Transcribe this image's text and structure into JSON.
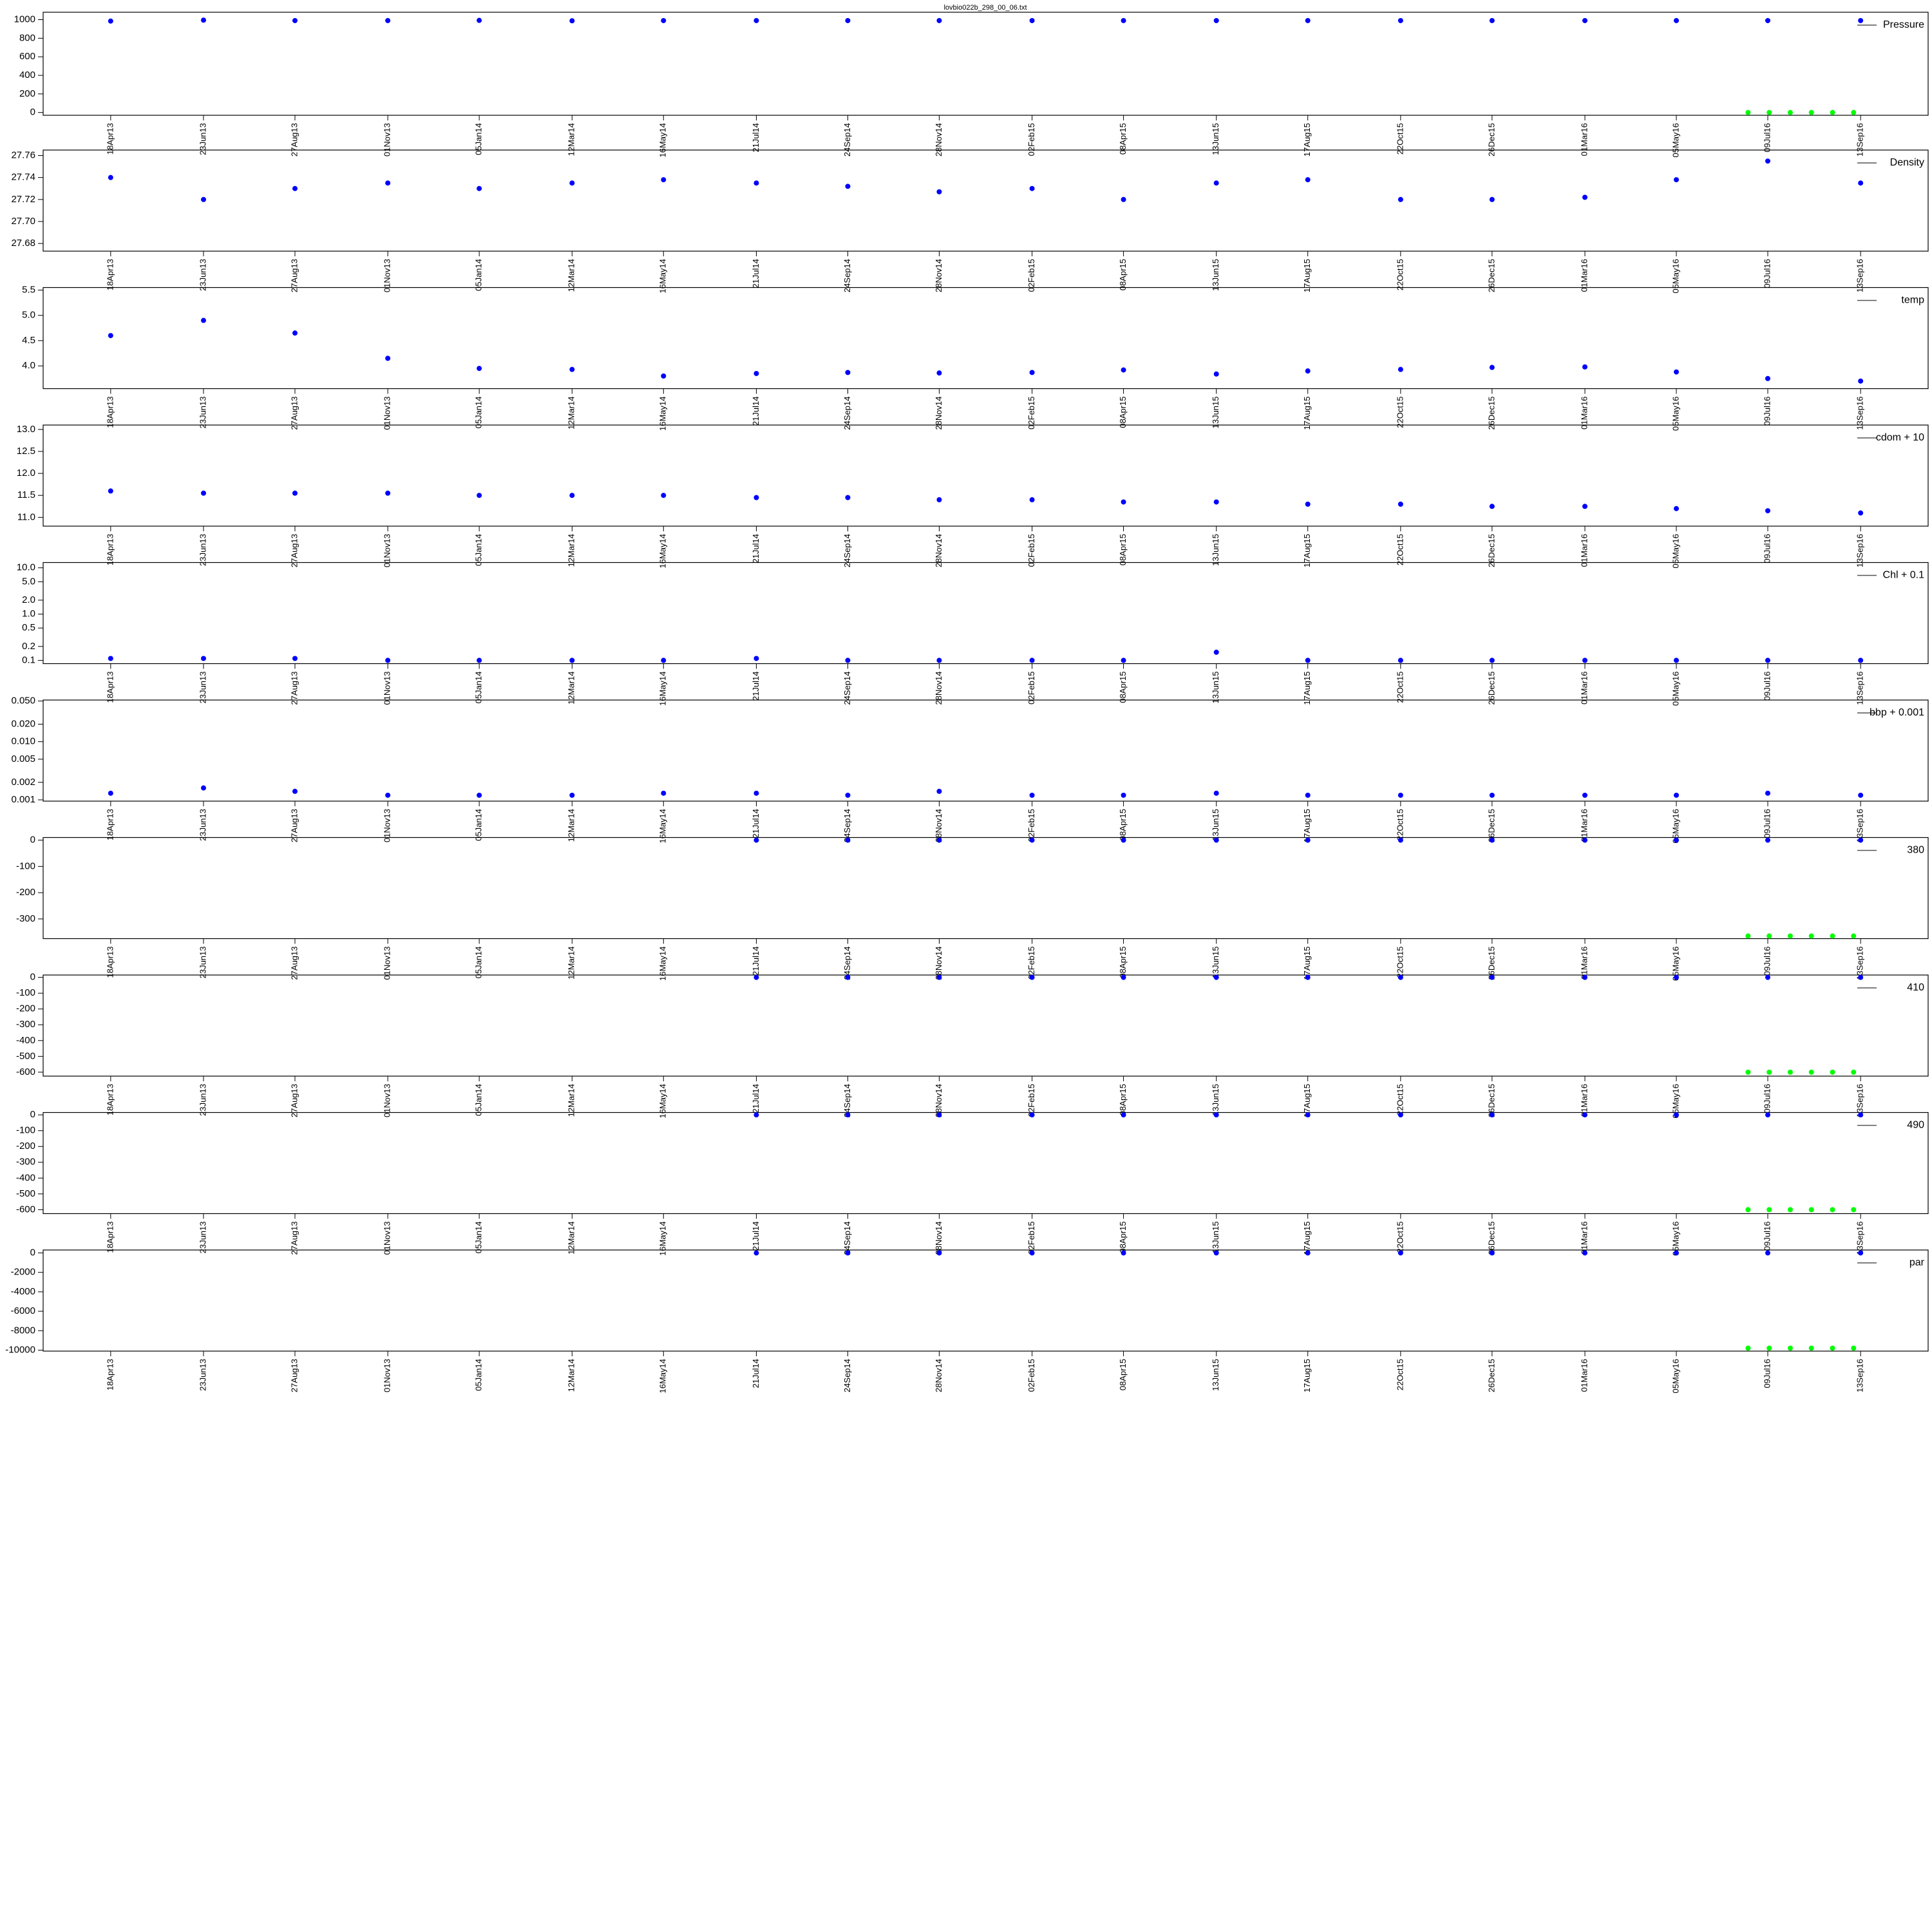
{
  "chart_data": [
    {
      "type": "scatter",
      "title": "lovbio022b_298_00_06.txt",
      "ylim": [
        -30,
        1080
      ],
      "yticks": [
        0,
        200,
        400,
        600,
        800,
        1000
      ],
      "x": [
        "2013-04-18",
        "2013-06-23",
        "2013-08-27",
        "2013-11-01",
        "2014-01-05",
        "2014-03-12",
        "2014-05-16",
        "2014-07-21",
        "2014-09-24",
        "2014-11-28",
        "2015-02-02",
        "2015-04-08",
        "2015-06-13",
        "2015-08-17",
        "2015-10-22",
        "2015-12-26",
        "2016-03-01",
        "2016-05-05",
        "2016-07-09",
        "2016-09-13"
      ],
      "series": [
        {
          "name": "Pressure",
          "color": "#0000ff",
          "values": [
            985,
            995,
            990,
            990,
            992,
            988,
            990,
            990,
            990,
            990,
            990,
            990,
            990,
            990,
            990,
            990,
            990,
            990,
            990,
            990
          ]
        },
        {
          "color": "#00ff00",
          "x": [
            "2016-06-25",
            "2016-07-10",
            "2016-07-25",
            "2016-08-09",
            "2016-08-24",
            "2016-09-08"
          ],
          "values": [
            0,
            0,
            0,
            0,
            0,
            0
          ]
        }
      ]
    },
    {
      "type": "scatter",
      "ylim": [
        27.673,
        27.765
      ],
      "yticks": [
        27.68,
        {
          "value": 27.7,
          "label": "27.70"
        },
        27.72,
        27.74,
        27.76
      ],
      "x": [
        "2013-04-18",
        "2013-06-23",
        "2013-08-27",
        "2013-11-01",
        "2014-01-05",
        "2014-03-12",
        "2014-05-16",
        "2014-07-21",
        "2014-09-24",
        "2014-11-28",
        "2015-02-02",
        "2015-04-08",
        "2015-06-13",
        "2015-08-17",
        "2015-10-22",
        "2015-12-26",
        "2016-03-01",
        "2016-05-05",
        "2016-07-09",
        "2016-09-13"
      ],
      "series": [
        {
          "name": "Density",
          "color": "#0000ff",
          "values": [
            27.74,
            27.72,
            27.73,
            27.735,
            27.73,
            27.735,
            27.738,
            27.735,
            27.732,
            27.727,
            27.73,
            27.72,
            27.735,
            27.738,
            27.72,
            27.72,
            27.722,
            27.738,
            27.755,
            27.735
          ]
        }
      ]
    },
    {
      "type": "scatter",
      "ylim": [
        3.55,
        5.55
      ],
      "yticks": [
        {
          "value": 4,
          "label": "4.0"
        },
        4.5,
        {
          "value": 5,
          "label": "5.0"
        },
        5.5
      ],
      "x": [
        "2013-04-18",
        "2013-06-23",
        "2013-08-27",
        "2013-11-01",
        "2014-01-05",
        "2014-03-12",
        "2014-05-16",
        "2014-07-21",
        "2014-09-24",
        "2014-11-28",
        "2015-02-02",
        "2015-04-08",
        "2015-06-13",
        "2015-08-17",
        "2015-10-22",
        "2015-12-26",
        "2016-03-01",
        "2016-05-05",
        "2016-07-09",
        "2016-09-13"
      ],
      "series": [
        {
          "name": "temp",
          "color": "#0000ff",
          "values": [
            4.6,
            4.9,
            4.65,
            4.15,
            3.95,
            3.93,
            3.8,
            3.85,
            3.87,
            3.86,
            3.87,
            3.92,
            3.84,
            3.9,
            3.93,
            3.97,
            3.98,
            3.88,
            3.75,
            3.7
          ]
        }
      ]
    },
    {
      "type": "scatter",
      "ylim": [
        10.8,
        13.1
      ],
      "yticks": [
        {
          "value": 11,
          "label": "11.0"
        },
        11.5,
        {
          "value": 12,
          "label": "12.0"
        },
        12.5,
        {
          "value": 13,
          "label": "13.0"
        }
      ],
      "x": [
        "2013-04-18",
        "2013-06-23",
        "2013-08-27",
        "2013-11-01",
        "2014-01-05",
        "2014-03-12",
        "2014-05-16",
        "2014-07-21",
        "2014-09-24",
        "2014-11-28",
        "2015-02-02",
        "2015-04-08",
        "2015-06-13",
        "2015-08-17",
        "2015-10-22",
        "2015-12-26",
        "2016-03-01",
        "2016-05-05",
        "2016-07-09",
        "2016-09-13"
      ],
      "series": [
        {
          "name": "cdom + 10",
          "color": "#0000ff",
          "values": [
            11.6,
            11.55,
            11.55,
            11.55,
            11.5,
            11.5,
            11.5,
            11.45,
            11.45,
            11.4,
            11.4,
            11.35,
            11.35,
            11.3,
            11.3,
            11.25,
            11.25,
            11.2,
            11.15,
            11.1
          ]
        }
      ]
    },
    {
      "type": "scatter",
      "log": true,
      "ylim": [
        0.085,
        13
      ],
      "yticks": [
        0.1,
        0.2,
        0.5,
        {
          "value": 1,
          "label": "1.0"
        },
        {
          "value": 2,
          "label": "2.0"
        },
        {
          "value": 5,
          "label": "5.0"
        },
        {
          "value": 10,
          "label": "10.0"
        }
      ],
      "x": [
        "2013-04-18",
        "2013-06-23",
        "2013-08-27",
        "2013-11-01",
        "2014-01-05",
        "2014-03-12",
        "2014-05-16",
        "2014-07-21",
        "2014-09-24",
        "2014-11-28",
        "2015-02-02",
        "2015-04-08",
        "2015-06-13",
        "2015-08-17",
        "2015-10-22",
        "2015-12-26",
        "2016-03-01",
        "2016-05-05",
        "2016-07-09",
        "2016-09-13"
      ],
      "series": [
        {
          "name": "Chl + 0.1",
          "color": "#0000ff",
          "values": [
            0.11,
            0.11,
            0.11,
            0.1,
            0.1,
            0.1,
            0.1,
            0.11,
            0.1,
            0.1,
            0.1,
            0.1,
            0.15,
            0.1,
            0.1,
            0.1,
            0.1,
            0.1,
            0.1,
            0.1
          ]
        }
      ]
    },
    {
      "type": "scatter",
      "log": true,
      "ylim": [
        0.00095,
        0.052
      ],
      "yticks": [
        0.001,
        0.002,
        0.005,
        {
          "value": 0.01,
          "label": "0.010"
        },
        {
          "value": 0.02,
          "label": "0.020"
        },
        {
          "value": 0.05,
          "label": "0.050"
        }
      ],
      "x": [
        "2013-04-18",
        "2013-06-23",
        "2013-08-27",
        "2013-11-01",
        "2014-01-05",
        "2014-03-12",
        "2014-05-16",
        "2014-07-21",
        "2014-09-24",
        "2014-11-28",
        "2015-02-02",
        "2015-04-08",
        "2015-06-13",
        "2015-08-17",
        "2015-10-22",
        "2015-12-26",
        "2016-03-01",
        "2016-05-05",
        "2016-07-09",
        "2016-09-13"
      ],
      "series": [
        {
          "name": "bbp + 0.001",
          "color": "#0000ff",
          "values": [
            0.0013,
            0.0016,
            0.0014,
            0.0012,
            0.0012,
            0.0012,
            0.0013,
            0.0013,
            0.0012,
            0.0014,
            0.0012,
            0.0012,
            0.0013,
            0.0012,
            0.0012,
            0.0012,
            0.0012,
            0.0012,
            0.0013,
            0.0012
          ]
        }
      ]
    },
    {
      "type": "scatter",
      "ylim": [
        -375,
        10
      ],
      "yticks": [
        -300,
        -200,
        -100,
        0
      ],
      "x": [
        "2013-04-18",
        "2013-06-23",
        "2013-08-27",
        "2013-11-01",
        "2014-01-05",
        "2014-03-12",
        "2014-05-16",
        "2014-07-21",
        "2014-09-24",
        "2014-11-28",
        "2015-02-02",
        "2015-04-08",
        "2015-06-13",
        "2015-08-17",
        "2015-10-22",
        "2015-12-26",
        "2016-03-01",
        "2016-05-05",
        "2016-07-09",
        "2016-09-13"
      ],
      "series": [
        {
          "name": "380",
          "color": "#0000ff",
          "values": [
            null,
            null,
            null,
            null,
            null,
            null,
            null,
            0,
            0,
            0,
            0,
            0,
            0,
            0,
            0,
            0,
            0,
            0,
            0,
            0
          ]
        },
        {
          "color": "#00ff00",
          "x": [
            "2016-06-25",
            "2016-07-10",
            "2016-07-25",
            "2016-08-09",
            "2016-08-24",
            "2016-09-08"
          ],
          "values": [
            -365,
            -365,
            -365,
            -365,
            -365,
            -365
          ]
        }
      ]
    },
    {
      "type": "scatter",
      "ylim": [
        -625,
        15
      ],
      "yticks": [
        -600,
        -500,
        -400,
        -300,
        -200,
        -100,
        0
      ],
      "x": [
        "2013-04-18",
        "2013-06-23",
        "2013-08-27",
        "2013-11-01",
        "2014-01-05",
        "2014-03-12",
        "2014-05-16",
        "2014-07-21",
        "2014-09-24",
        "2014-11-28",
        "2015-02-02",
        "2015-04-08",
        "2015-06-13",
        "2015-08-17",
        "2015-10-22",
        "2015-12-26",
        "2016-03-01",
        "2016-05-05",
        "2016-07-09",
        "2016-09-13"
      ],
      "series": [
        {
          "name": "410",
          "color": "#0000ff",
          "values": [
            null,
            null,
            null,
            null,
            null,
            null,
            null,
            0,
            0,
            0,
            0,
            0,
            0,
            0,
            0,
            0,
            0,
            0,
            0,
            0
          ]
        },
        {
          "color": "#00ff00",
          "x": [
            "2016-06-25",
            "2016-07-10",
            "2016-07-25",
            "2016-08-09",
            "2016-08-24",
            "2016-09-08"
          ],
          "values": [
            -600,
            -600,
            -600,
            -600,
            -600,
            -600
          ]
        }
      ]
    },
    {
      "type": "scatter",
      "ylim": [
        -625,
        15
      ],
      "yticks": [
        -600,
        -500,
        -400,
        -300,
        -200,
        -100,
        0
      ],
      "x": [
        "2013-04-18",
        "2013-06-23",
        "2013-08-27",
        "2013-11-01",
        "2014-01-05",
        "2014-03-12",
        "2014-05-16",
        "2014-07-21",
        "2014-09-24",
        "2014-11-28",
        "2015-02-02",
        "2015-04-08",
        "2015-06-13",
        "2015-08-17",
        "2015-10-22",
        "2015-12-26",
        "2016-03-01",
        "2016-05-05",
        "2016-07-09",
        "2016-09-13"
      ],
      "series": [
        {
          "name": "490",
          "color": "#0000ff",
          "values": [
            null,
            null,
            null,
            null,
            null,
            null,
            null,
            0,
            0,
            0,
            0,
            0,
            0,
            0,
            0,
            0,
            0,
            0,
            0,
            0
          ]
        },
        {
          "color": "#00ff00",
          "x": [
            "2016-06-25",
            "2016-07-10",
            "2016-07-25",
            "2016-08-09",
            "2016-08-24",
            "2016-09-08"
          ],
          "values": [
            -600,
            -600,
            -600,
            -600,
            -600,
            -600
          ]
        }
      ]
    },
    {
      "type": "scatter",
      "ylim": [
        -10100,
        300
      ],
      "yticks": [
        -10000,
        -8000,
        -6000,
        -4000,
        -2000,
        0
      ],
      "x": [
        "2013-04-18",
        "2013-06-23",
        "2013-08-27",
        "2013-11-01",
        "2014-01-05",
        "2014-03-12",
        "2014-05-16",
        "2014-07-21",
        "2014-09-24",
        "2014-11-28",
        "2015-02-02",
        "2015-04-08",
        "2015-06-13",
        "2015-08-17",
        "2015-10-22",
        "2015-12-26",
        "2016-03-01",
        "2016-05-05",
        "2016-07-09",
        "2016-09-13"
      ],
      "series": [
        {
          "name": "par",
          "color": "#0000ff",
          "values": [
            null,
            null,
            null,
            null,
            null,
            null,
            null,
            0,
            0,
            0,
            0,
            0,
            0,
            0,
            0,
            0,
            0,
            0,
            0,
            0
          ]
        },
        {
          "color": "#00ff00",
          "x": [
            "2016-06-25",
            "2016-07-10",
            "2016-07-25",
            "2016-08-09",
            "2016-08-24",
            "2016-09-08"
          ],
          "values": [
            -9800,
            -9800,
            -9800,
            -9800,
            -9800,
            -9800
          ]
        }
      ]
    }
  ],
  "xlim": [
    "2013-03-01",
    "2016-10-31"
  ],
  "xticks": [
    {
      "value": "2013-04-18",
      "label": "18Apr13"
    },
    {
      "value": "2013-06-23",
      "label": "23Jun13"
    },
    {
      "value": "2013-08-27",
      "label": "27Aug13"
    },
    {
      "value": "2013-11-01",
      "label": "01Nov13"
    },
    {
      "value": "2014-01-05",
      "label": "05Jan14"
    },
    {
      "value": "2014-03-12",
      "label": "12Mar14"
    },
    {
      "value": "2014-05-16",
      "label": "16May14"
    },
    {
      "value": "2014-07-21",
      "label": "21Jul14"
    },
    {
      "value": "2014-09-24",
      "label": "24Sep14"
    },
    {
      "value": "2014-11-28",
      "label": "28Nov14"
    },
    {
      "value": "2015-02-02",
      "label": "02Feb15"
    },
    {
      "value": "2015-04-08",
      "label": "08Apr15"
    },
    {
      "value": "2015-06-13",
      "label": "13Jun15"
    },
    {
      "value": "2015-08-17",
      "label": "17Aug15"
    },
    {
      "value": "2015-10-22",
      "label": "22Oct15"
    },
    {
      "value": "2015-12-26",
      "label": "26Dec15"
    },
    {
      "value": "2016-03-01",
      "label": "01Mar16"
    },
    {
      "value": "2016-05-05",
      "label": "05May16"
    },
    {
      "value": "2016-07-09",
      "label": "09Jul16"
    },
    {
      "value": "2016-09-13",
      "label": "13Sep16"
    }
  ]
}
